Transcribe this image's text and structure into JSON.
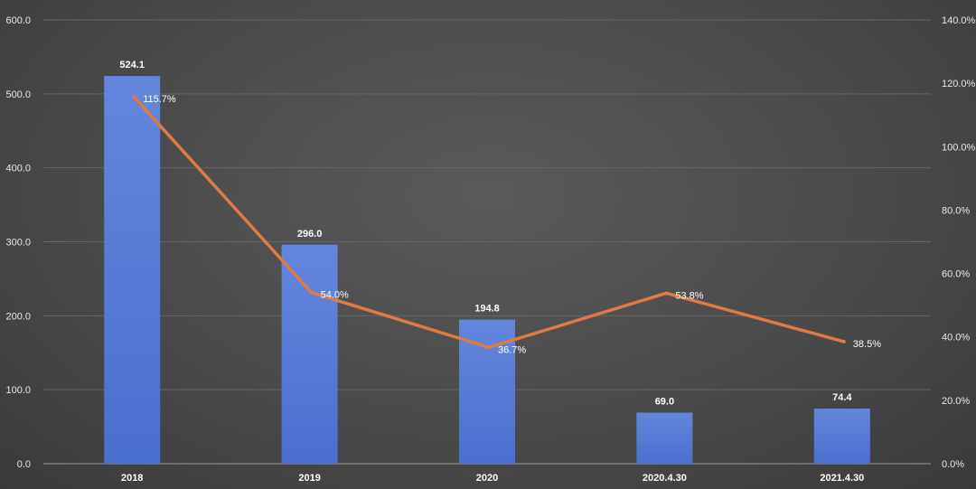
{
  "chart_data": {
    "type": "bar",
    "title": "",
    "categories": [
      "2018",
      "2019",
      "2020",
      "2020.4.30",
      "2021.4.30"
    ],
    "series": [
      {
        "type": "bar",
        "values": [
          524.1,
          296.0,
          194.8,
          69.0,
          74.4
        ],
        "labels": [
          "524.1",
          "296.0",
          "194.8",
          "69.0",
          "74.4"
        ],
        "color": "#4a6fd0",
        "axis": "left"
      },
      {
        "type": "line",
        "values": [
          115.7,
          54.0,
          36.7,
          53.8,
          38.5
        ],
        "labels": [
          "115.7%",
          "54.0%",
          "36.7%",
          "53.8%",
          "38.5%"
        ],
        "color": "#e07a45",
        "axis": "right"
      }
    ],
    "ylim_left": [
      0,
      600
    ],
    "ylim_right": [
      0,
      140
    ],
    "left_ticks": [
      "0.0",
      "100.0",
      "200.0",
      "300.0",
      "400.0",
      "500.0",
      "600.0"
    ],
    "right_ticks": [
      "0.0%",
      "20.0%",
      "40.0%",
      "60.0%",
      "80.0%",
      "100.0%",
      "120.0%",
      "140.0%"
    ],
    "grid": true
  }
}
